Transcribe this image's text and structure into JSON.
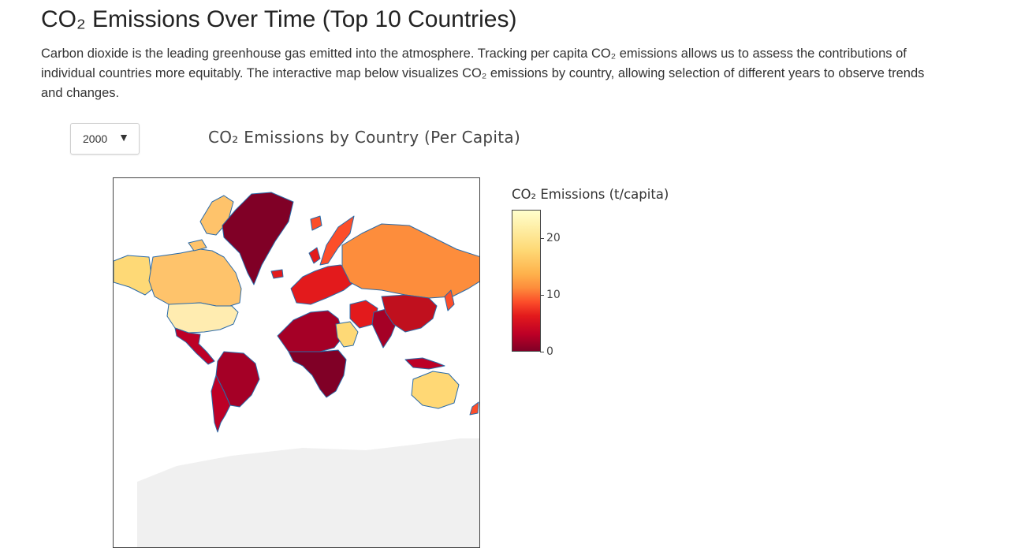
{
  "page": {
    "title": "CO₂ Emissions Over Time (Top 10 Countries)",
    "description": "Carbon dioxide is the leading greenhouse gas emitted into the atmosphere. Tracking per capita CO₂ emissions allows us to assess the contributions of individual countries more equitably. The interactive map below visualizes CO₂ emissions by country, allowing selection of different years to observe trends and changes."
  },
  "controls": {
    "year_selected": "2000",
    "caret": "▼"
  },
  "chart_data": {
    "type": "heatmap",
    "title": "CO₂ Emissions by Country (Per Capita)",
    "colorbar": {
      "title": "CO₂ Emissions (t/capita)",
      "ticks": [
        "20",
        "10",
        "0"
      ],
      "range": [
        0,
        25
      ],
      "colorscale": [
        "#800026",
        "#bd0026",
        "#e31a1c",
        "#fc4e2a",
        "#fd8d3c",
        "#feb24c",
        "#fed976",
        "#ffffcc"
      ]
    }
  },
  "colors": {
    "border": "#2a6aa8",
    "antarctica": "#f0f0f0"
  }
}
